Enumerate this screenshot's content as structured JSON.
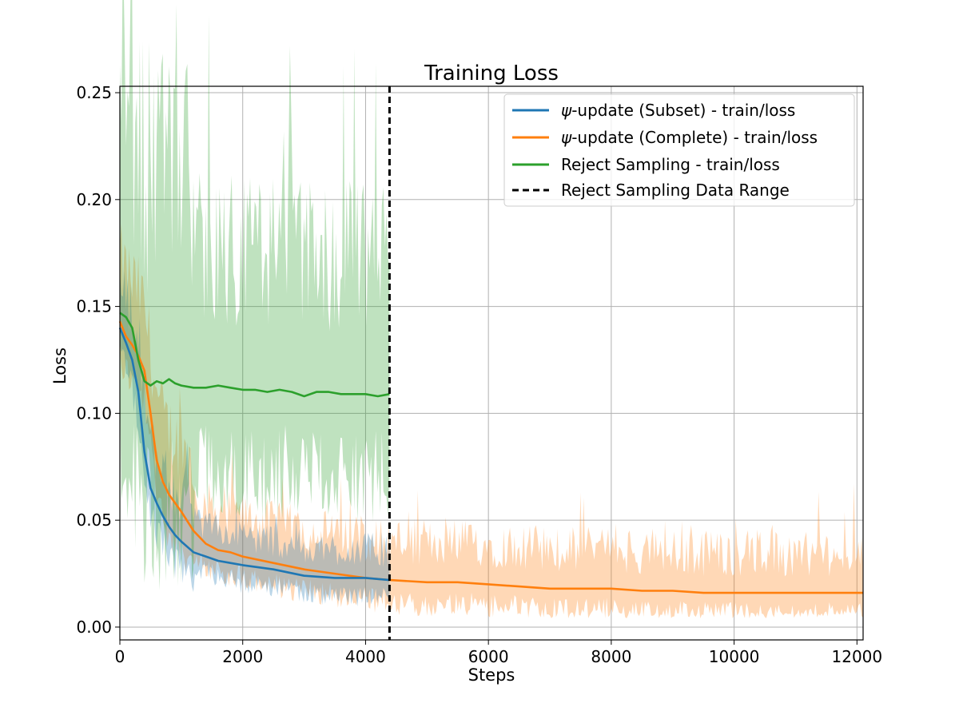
{
  "chart_data": {
    "type": "line",
    "title": "Training Loss",
    "xlabel": "Steps",
    "ylabel": "Loss",
    "xlim": [
      0,
      12100
    ],
    "ylim": [
      -0.006,
      0.253
    ],
    "xticks": [
      0,
      2000,
      4000,
      6000,
      8000,
      10000,
      12000
    ],
    "xtick_labels": [
      "0",
      "2000",
      "4000",
      "6000",
      "8000",
      "10000",
      "12000"
    ],
    "yticks": [
      0.0,
      0.05,
      0.1,
      0.15,
      0.2,
      0.25
    ],
    "ytick_labels": [
      "0.00",
      "0.05",
      "0.10",
      "0.15",
      "0.20",
      "0.25"
    ],
    "grid": true,
    "legend_position": "top-right",
    "vline": {
      "name": "Reject Sampling Data Range",
      "x": 4390,
      "color": "#000000",
      "style": "dashed"
    },
    "series": [
      {
        "name": "ψ-update (Complete) - train/loss",
        "legend_prefix": "ψ",
        "legend_suffix": "-update (Complete) - train/loss",
        "color": "#ff7f0e",
        "raw_band": {
          "lower_noise": 0.012,
          "upper_noise": 0.022
        },
        "smoothed": {
          "x": [
            0,
            100,
            200,
            300,
            400,
            500,
            600,
            700,
            800,
            900,
            1000,
            1200,
            1400,
            1600,
            1800,
            2000,
            2500,
            3000,
            3500,
            4000,
            4400,
            5000,
            5500,
            6000,
            6500,
            7000,
            7500,
            8000,
            8500,
            9000,
            9500,
            10000,
            10500,
            11000,
            11500,
            12000,
            12100
          ],
          "y": [
            0.143,
            0.136,
            0.132,
            0.127,
            0.12,
            0.1,
            0.078,
            0.068,
            0.062,
            0.058,
            0.054,
            0.045,
            0.039,
            0.036,
            0.035,
            0.033,
            0.03,
            0.027,
            0.025,
            0.023,
            0.022,
            0.021,
            0.021,
            0.02,
            0.019,
            0.018,
            0.018,
            0.018,
            0.017,
            0.017,
            0.016,
            0.016,
            0.016,
            0.016,
            0.016,
            0.016,
            0.016
          ]
        }
      },
      {
        "name": "ψ-update (Subset) - train/loss",
        "legend_prefix": "ψ",
        "legend_suffix": "-update (Subset) - train/loss",
        "color": "#1f77b4",
        "raw_band": {
          "lower_noise": 0.01,
          "upper_noise": 0.016
        },
        "smoothed": {
          "x": [
            0,
            100,
            200,
            300,
            400,
            500,
            600,
            700,
            800,
            900,
            1000,
            1200,
            1400,
            1600,
            1800,
            2000,
            2500,
            3000,
            3500,
            4000,
            4390
          ],
          "y": [
            0.14,
            0.133,
            0.125,
            0.11,
            0.082,
            0.065,
            0.058,
            0.052,
            0.047,
            0.043,
            0.04,
            0.035,
            0.033,
            0.031,
            0.03,
            0.029,
            0.027,
            0.024,
            0.023,
            0.023,
            0.022
          ]
        }
      },
      {
        "name": "Reject Sampling - train/loss",
        "legend_prefix": "",
        "legend_suffix": "Reject Sampling - train/loss",
        "color": "#2ca02c",
        "raw_band": {
          "lower_noise": 0.045,
          "upper_noise": 0.075
        },
        "smoothed": {
          "x": [
            0,
            100,
            200,
            300,
            400,
            500,
            600,
            700,
            800,
            900,
            1000,
            1200,
            1400,
            1600,
            1800,
            2000,
            2200,
            2400,
            2600,
            2800,
            3000,
            3200,
            3400,
            3600,
            3800,
            4000,
            4200,
            4390
          ],
          "y": [
            0.147,
            0.145,
            0.14,
            0.125,
            0.115,
            0.113,
            0.115,
            0.114,
            0.116,
            0.114,
            0.113,
            0.112,
            0.112,
            0.113,
            0.112,
            0.111,
            0.111,
            0.11,
            0.111,
            0.11,
            0.108,
            0.11,
            0.11,
            0.109,
            0.109,
            0.109,
            0.108,
            0.109
          ]
        }
      }
    ]
  }
}
